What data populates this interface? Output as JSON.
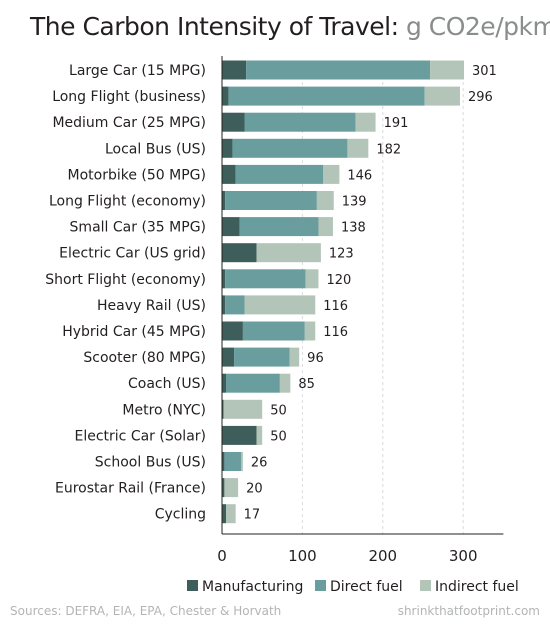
{
  "header": {
    "title": "The Carbon Intensity of Travel:",
    "unit": "g CO2e/pkm"
  },
  "footer": {
    "sources": "Sources:  DEFRA, EIA, EPA, Chester & Horvath",
    "site": "shrinkthatfootprint.com"
  },
  "chart_data": {
    "type": "bar",
    "orientation": "horizontal",
    "stacked": true,
    "categories": [
      "Large Car (15 MPG)",
      "Long Flight (business)",
      "Medium Car (25 MPG)",
      "Local Bus (US)",
      "Motorbike (50 MPG)",
      "Long Flight (economy)",
      "Small Car (35 MPG)",
      "Electric Car (US grid)",
      "Short Flight (economy)",
      "Heavy Rail (US)",
      "Hybrid Car (45 MPG)",
      "Scooter (80 MPG)",
      "Coach (US)",
      "Metro (NYC)",
      "Electric Car (Solar)",
      "School Bus (US)",
      "Eurostar Rail (France)",
      "Cycling"
    ],
    "series": [
      {
        "name": "Manufacturing",
        "color": "#3e5e5b",
        "values": [
          30,
          8,
          28,
          13,
          17,
          4,
          22,
          43,
          4,
          4,
          26,
          15,
          5,
          2,
          43,
          3,
          3,
          5
        ]
      },
      {
        "name": "Direct fuel",
        "color": "#6a9e9e",
        "values": [
          229,
          244,
          138,
          143,
          109,
          114,
          98,
          0,
          100,
          24,
          77,
          69,
          67,
          0,
          0,
          21,
          0,
          0
        ]
      },
      {
        "name": "Indirect fuel",
        "color": "#b3c5b9",
        "values": [
          42,
          44,
          25,
          26,
          20,
          21,
          18,
          80,
          16,
          88,
          13,
          12,
          13,
          48,
          7,
          2,
          17,
          12
        ]
      }
    ],
    "totals": [
      301,
      296,
      191,
      182,
      146,
      139,
      138,
      123,
      120,
      116,
      116,
      96,
      85,
      50,
      50,
      26,
      20,
      17
    ],
    "xlim": [
      0,
      350
    ],
    "xticks": [
      0,
      100,
      200,
      300
    ],
    "grid": "vertical-dashed",
    "legend_position": "bottom"
  }
}
